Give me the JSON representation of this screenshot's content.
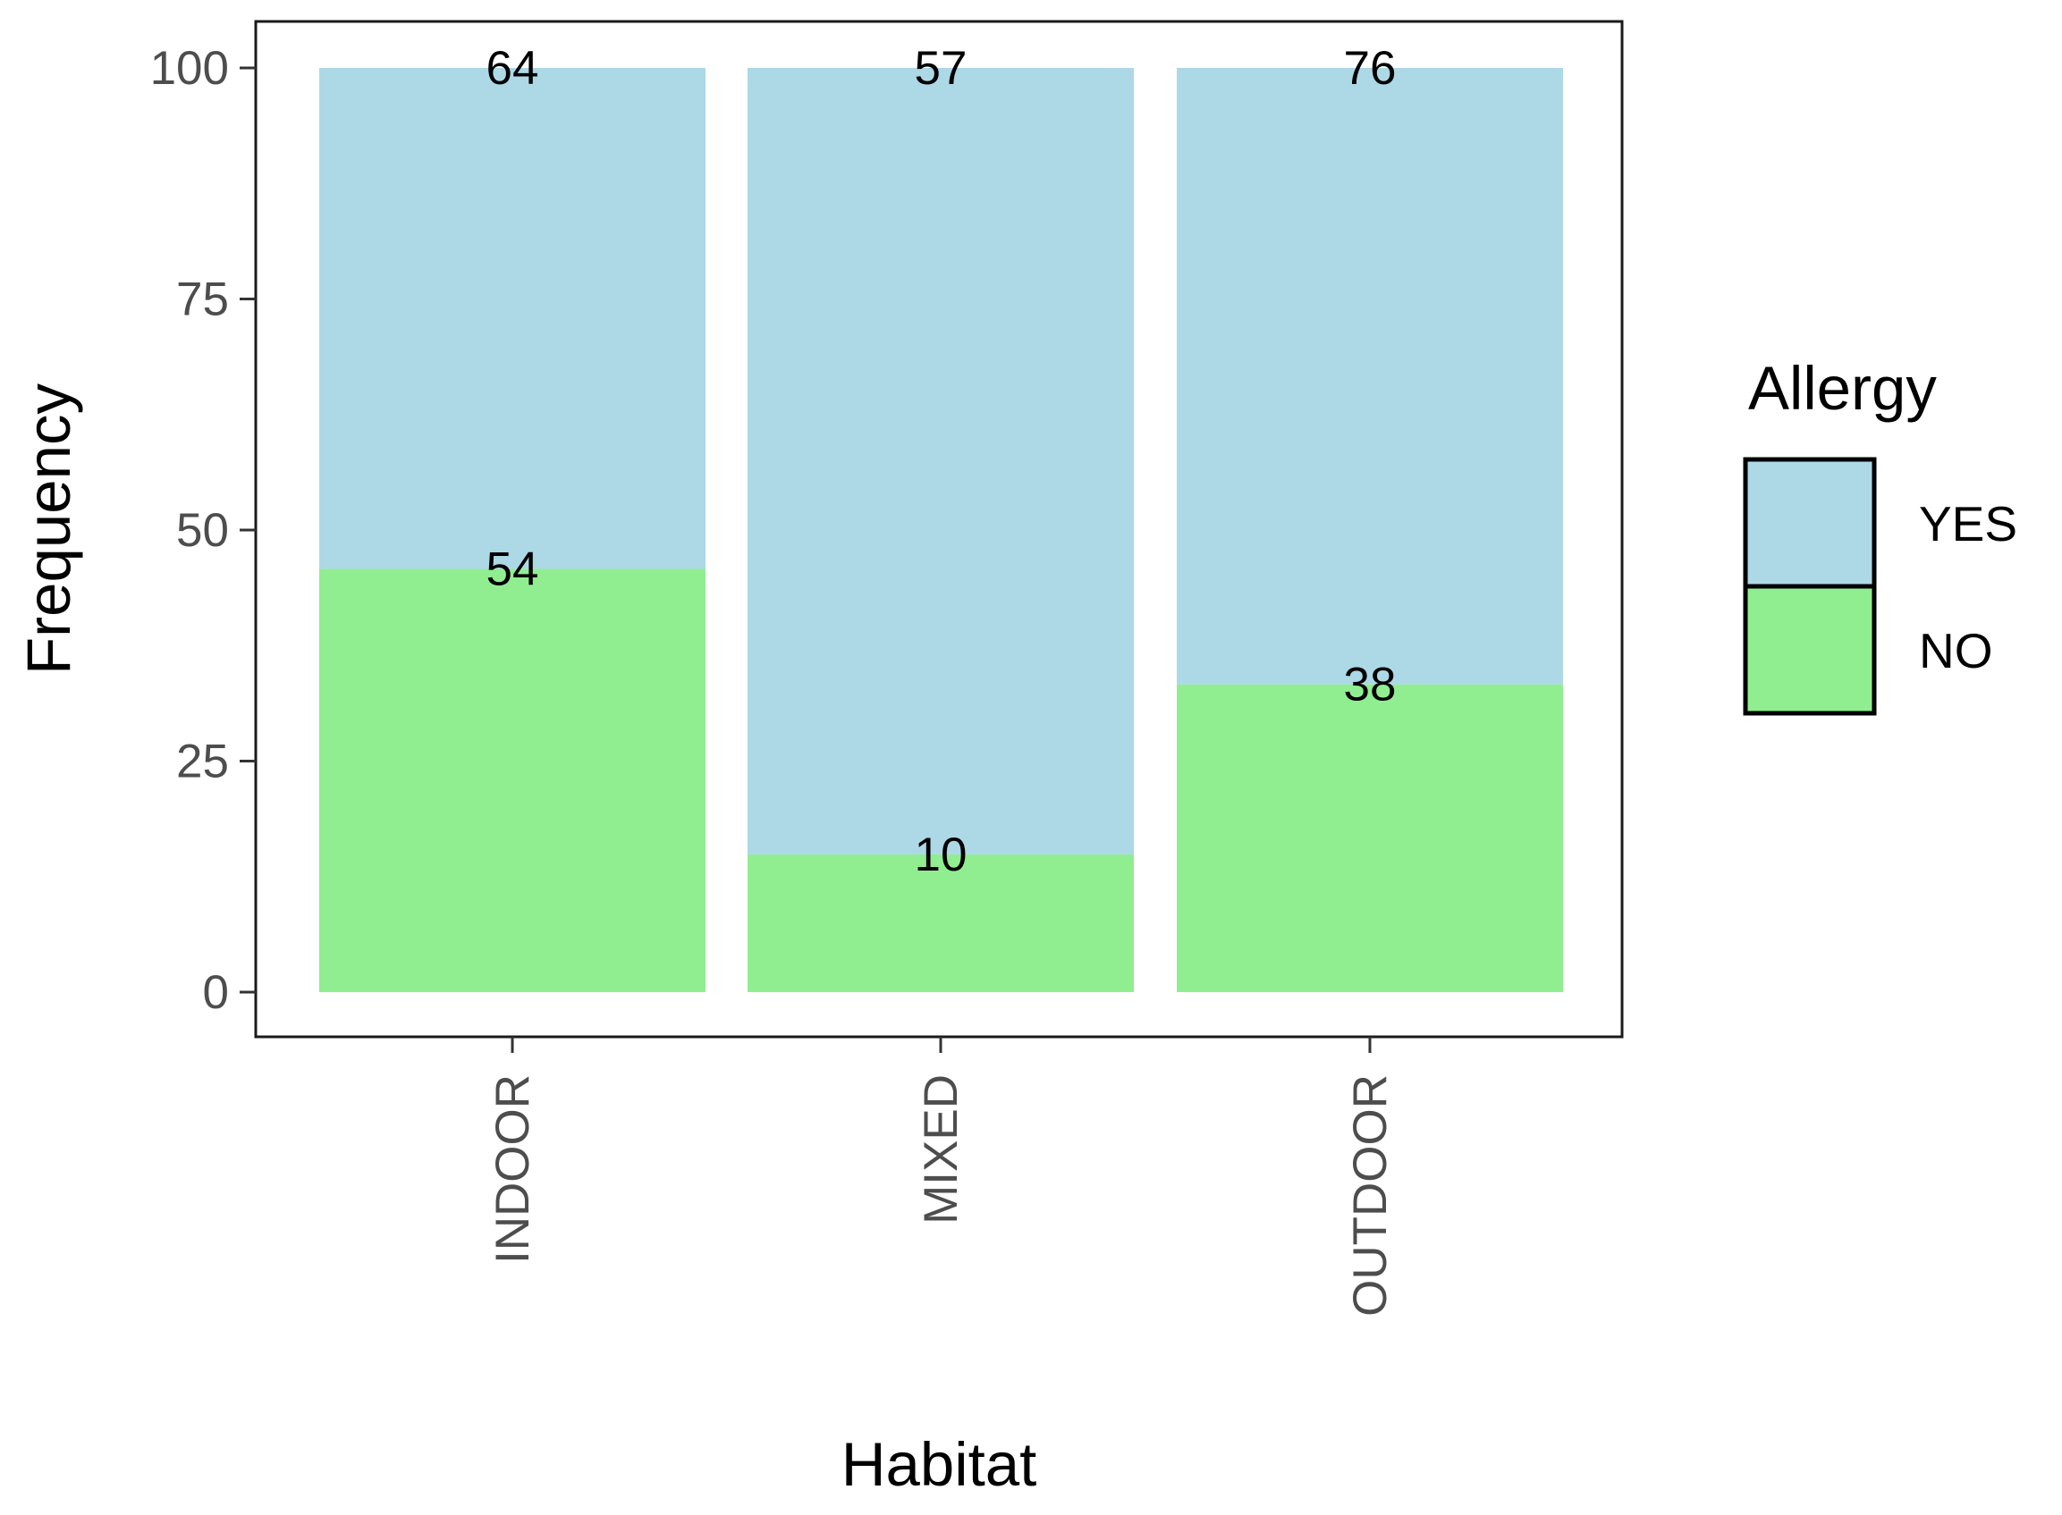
{
  "chart_data": {
    "type": "bar",
    "stacked": true,
    "categories": [
      "INDOOR",
      "MIXED",
      "OUTDOOR"
    ],
    "series": [
      {
        "name": "NO",
        "color": "#90ee90",
        "values": [
          45.8,
          14.9,
          33.3
        ],
        "labels": [
          "54",
          "10",
          "38"
        ]
      },
      {
        "name": "YES",
        "color": "#add8e6",
        "values": [
          54.2,
          85.1,
          66.7
        ],
        "labels": [
          "64",
          "57",
          "76"
        ]
      }
    ],
    "xlabel": "Habitat",
    "ylabel": "Frequency",
    "ylim": [
      0,
      100
    ],
    "yticks": [
      "0",
      "25",
      "50",
      "75",
      "100"
    ],
    "grid": false,
    "legend": {
      "title": "Allergy",
      "position": "right",
      "entries": [
        {
          "label": "YES",
          "color": "#add8e6"
        },
        {
          "label": "NO",
          "color": "#90ee90"
        }
      ]
    }
  }
}
